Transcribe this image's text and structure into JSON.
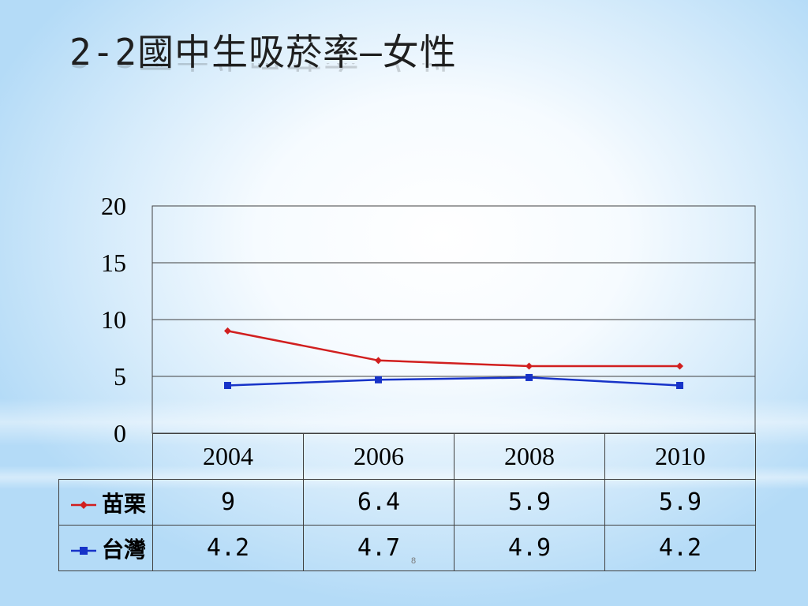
{
  "slide": {
    "title": "2-2國中生吸菸率—女性",
    "page_number": "8"
  },
  "colors": {
    "miaoli": "#d11f1f",
    "taiwan": "#1733c8",
    "grid": "#404040"
  },
  "table": {
    "header": [
      "2004",
      "2006",
      "2008",
      "2010"
    ],
    "rows": [
      {
        "label": "苗栗",
        "cells": [
          "9",
          "6.4",
          "5.9",
          "5.9"
        ]
      },
      {
        "label": "台灣",
        "cells": [
          "4.2",
          "4.7",
          "4.9",
          "4.2"
        ]
      }
    ]
  },
  "chart_data": {
    "type": "line",
    "title": "",
    "xlabel": "",
    "ylabel": "",
    "categories": [
      "2004",
      "2006",
      "2008",
      "2010"
    ],
    "ylim": [
      0,
      20
    ],
    "yticks": [
      "0",
      "5",
      "10",
      "15",
      "20"
    ],
    "grid": true,
    "legend": "table-left",
    "series": [
      {
        "name": "苗栗",
        "values": [
          9,
          6.4,
          5.9,
          5.9
        ],
        "marker": "diamond",
        "color": "#d11f1f"
      },
      {
        "name": "台灣",
        "values": [
          4.2,
          4.7,
          4.9,
          4.2
        ],
        "marker": "square",
        "color": "#1733c8"
      }
    ]
  }
}
